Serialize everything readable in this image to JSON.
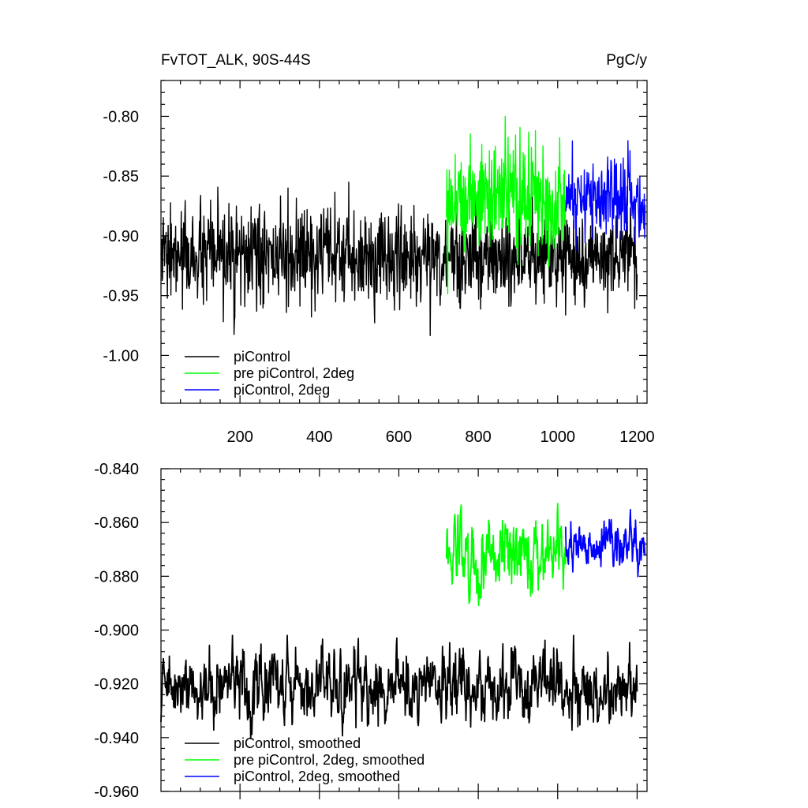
{
  "chart_data": [
    {
      "type": "line",
      "title": "FvTOT_ALK, 90S-44S",
      "units": "PgC/y",
      "xlim": [
        1,
        1225
      ],
      "ylim": [
        -1.04,
        -0.77
      ],
      "xticks": [
        200,
        400,
        600,
        800,
        1000,
        1200
      ],
      "xtick_labels": [
        "200",
        "400",
        "600",
        "800",
        "1000",
        "1200"
      ],
      "yticks": [
        -0.8,
        -0.85,
        -0.9,
        -0.95,
        -1.0
      ],
      "ytick_labels": [
        "-0.80",
        "-0.85",
        "-0.90",
        "-0.95",
        "-1.00"
      ],
      "legend": "bottom-left",
      "series": [
        {
          "name": "piControl",
          "color": "#000000",
          "x_start": 1,
          "x_end": 1200,
          "mean": -0.918,
          "spread": 0.022,
          "min": -1.005,
          "max": -0.855
        },
        {
          "name": "pre piControl, 2deg",
          "color": "#00ff00",
          "x_start": 720,
          "x_end": 1020,
          "mean": -0.867,
          "spread": 0.026,
          "min": -0.96,
          "max": -0.8
        },
        {
          "name": "piControl, 2deg",
          "color": "#0000ff",
          "x_start": 1020,
          "x_end": 1220,
          "mean": -0.868,
          "spread": 0.018,
          "min": -0.945,
          "max": -0.804
        }
      ]
    },
    {
      "type": "line",
      "title": "",
      "xlim": [
        1,
        1225
      ],
      "ylim": [
        -0.96,
        -0.84
      ],
      "xticks": [
        200,
        400,
        600,
        800,
        1000,
        1200
      ],
      "yticks": [
        -0.84,
        -0.86,
        -0.88,
        -0.9,
        -0.92,
        -0.94,
        -0.96
      ],
      "ytick_labels": [
        "-0.840",
        "-0.860",
        "-0.880",
        "-0.900",
        "-0.920",
        "-0.940",
        "-0.960"
      ],
      "legend": "bottom-left",
      "series": [
        {
          "name": "piControl, smoothed",
          "color": "#000000",
          "x_start": 1,
          "x_end": 1200,
          "mean": -0.921,
          "spread": 0.006,
          "min": -0.947,
          "max": -0.902
        },
        {
          "name": "pre piControl, 2deg, smoothed",
          "color": "#00ff00",
          "x_start": 720,
          "x_end": 1020,
          "mean": -0.871,
          "spread": 0.006,
          "min": -0.891,
          "max": -0.852
        },
        {
          "name": "piControl, 2deg, smoothed",
          "color": "#0000ff",
          "x_start": 1020,
          "x_end": 1220,
          "mean": -0.868,
          "spread": 0.004,
          "min": -0.889,
          "max": -0.853
        }
      ]
    }
  ]
}
